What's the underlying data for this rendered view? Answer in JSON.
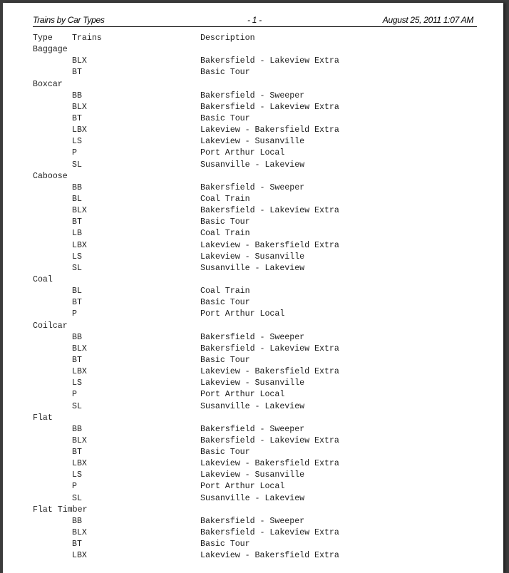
{
  "header": {
    "title": "Trains by Car Types",
    "page": "- 1 -",
    "date": "August 25, 2011 1:07 AM"
  },
  "columns": {
    "type": "Type",
    "trains": "Trains",
    "description": "Description"
  },
  "groups": [
    {
      "type": "Baggage",
      "trains": [
        [
          "BLX",
          "Bakersfield - Lakeview Extra"
        ],
        [
          "BT",
          "Basic Tour"
        ]
      ]
    },
    {
      "type": "Boxcar",
      "trains": [
        [
          "BB",
          "Bakersfield - Sweeper"
        ],
        [
          "BLX",
          "Bakersfield - Lakeview Extra"
        ],
        [
          "BT",
          "Basic Tour"
        ],
        [
          "LBX",
          "Lakeview - Bakersfield Extra"
        ],
        [
          "LS",
          "Lakeview - Susanville"
        ],
        [
          "P",
          "Port Arthur Local"
        ],
        [
          "SL",
          "Susanville - Lakeview"
        ]
      ]
    },
    {
      "type": "Caboose",
      "trains": [
        [
          "BB",
          "Bakersfield - Sweeper"
        ],
        [
          "BL",
          "Coal Train"
        ],
        [
          "BLX",
          "Bakersfield - Lakeview Extra"
        ],
        [
          "BT",
          "Basic Tour"
        ],
        [
          "LB",
          "Coal Train"
        ],
        [
          "LBX",
          "Lakeview - Bakersfield Extra"
        ],
        [
          "LS",
          "Lakeview - Susanville"
        ],
        [
          "SL",
          "Susanville - Lakeview"
        ]
      ]
    },
    {
      "type": "Coal",
      "trains": [
        [
          "BL",
          "Coal Train"
        ],
        [
          "BT",
          "Basic Tour"
        ],
        [
          "P",
          "Port Arthur Local"
        ]
      ]
    },
    {
      "type": "Coilcar",
      "trains": [
        [
          "BB",
          "Bakersfield - Sweeper"
        ],
        [
          "BLX",
          "Bakersfield - Lakeview Extra"
        ],
        [
          "BT",
          "Basic Tour"
        ],
        [
          "LBX",
          "Lakeview - Bakersfield Extra"
        ],
        [
          "LS",
          "Lakeview - Susanville"
        ],
        [
          "P",
          "Port Arthur Local"
        ],
        [
          "SL",
          "Susanville - Lakeview"
        ]
      ]
    },
    {
      "type": "Flat",
      "trains": [
        [
          "BB",
          "Bakersfield - Sweeper"
        ],
        [
          "BLX",
          "Bakersfield - Lakeview Extra"
        ],
        [
          "BT",
          "Basic Tour"
        ],
        [
          "LBX",
          "Lakeview - Bakersfield Extra"
        ],
        [
          "LS",
          "Lakeview - Susanville"
        ],
        [
          "P",
          "Port Arthur Local"
        ],
        [
          "SL",
          "Susanville - Lakeview"
        ]
      ]
    },
    {
      "type": "Flat Timber",
      "trains": [
        [
          "BB",
          "Bakersfield - Sweeper"
        ],
        [
          "BLX",
          "Bakersfield - Lakeview Extra"
        ],
        [
          "BT",
          "Basic Tour"
        ],
        [
          "LBX",
          "Lakeview - Bakersfield Extra"
        ]
      ]
    }
  ]
}
